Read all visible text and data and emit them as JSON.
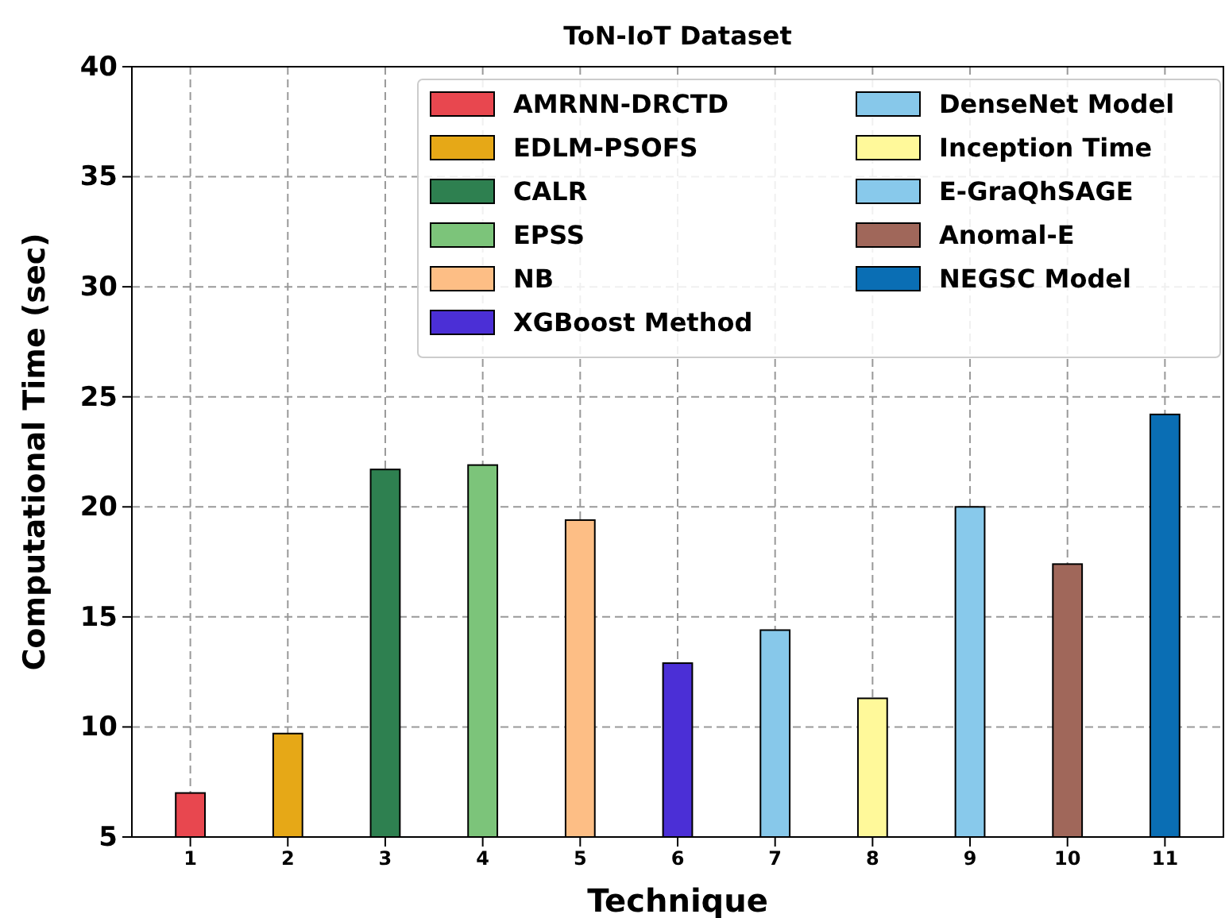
{
  "chart_data": {
    "type": "bar",
    "title": "ToN-IoT Dataset",
    "xlabel": "Technique",
    "ylabel": "Computational Time (sec)",
    "categories": [
      "1",
      "2",
      "3",
      "4",
      "5",
      "6",
      "7",
      "8",
      "9",
      "10",
      "11"
    ],
    "series": [
      {
        "name": "AMRNN-DRCTD",
        "color": "#e8474f",
        "values": [
          7.0,
          null,
          null,
          null,
          null,
          null,
          null,
          null,
          null,
          null,
          null
        ]
      },
      {
        "name": "EDLM-PSOFS",
        "color": "#e6a817",
        "values": [
          null,
          9.7,
          null,
          null,
          null,
          null,
          null,
          null,
          null,
          null,
          null
        ]
      },
      {
        "name": "CALR",
        "color": "#2e8050",
        "values": [
          null,
          null,
          21.7,
          null,
          null,
          null,
          null,
          null,
          null,
          null,
          null
        ]
      },
      {
        "name": "EPSS",
        "color": "#7cc47a",
        "values": [
          null,
          null,
          null,
          21.9,
          null,
          null,
          null,
          null,
          null,
          null,
          null
        ]
      },
      {
        "name": "NB",
        "color": "#fdbe85",
        "values": [
          null,
          null,
          null,
          null,
          19.4,
          null,
          null,
          null,
          null,
          null,
          null
        ]
      },
      {
        "name": "XGBoost Method",
        "color": "#4b2fd6",
        "values": [
          null,
          null,
          null,
          null,
          null,
          12.9,
          null,
          null,
          null,
          null,
          null
        ]
      },
      {
        "name": "DenseNet Model",
        "color": "#87c8ea",
        "values": [
          null,
          null,
          null,
          null,
          null,
          null,
          14.4,
          null,
          null,
          null,
          null
        ]
      },
      {
        "name": "Inception Time",
        "color": "#fff99a",
        "values": [
          null,
          null,
          null,
          null,
          null,
          null,
          null,
          11.3,
          null,
          null,
          null
        ]
      },
      {
        "name": "E-GraQhSAGE",
        "color": "#88c9eb",
        "values": [
          null,
          null,
          null,
          null,
          null,
          null,
          null,
          null,
          20.0,
          null,
          null
        ]
      },
      {
        "name": "Anomal-E",
        "color": "#a0675a",
        "values": [
          null,
          null,
          null,
          null,
          null,
          null,
          null,
          null,
          null,
          17.4,
          null
        ]
      },
      {
        "name": "NEGSC Model",
        "color": "#0a6eb4",
        "values": [
          null,
          null,
          null,
          null,
          null,
          null,
          null,
          null,
          null,
          null,
          24.2
        ]
      }
    ],
    "ylim": [
      5,
      40
    ],
    "yticks": [
      5,
      10,
      15,
      20,
      25,
      30,
      35,
      40
    ],
    "grid": true,
    "legend": "top right"
  }
}
